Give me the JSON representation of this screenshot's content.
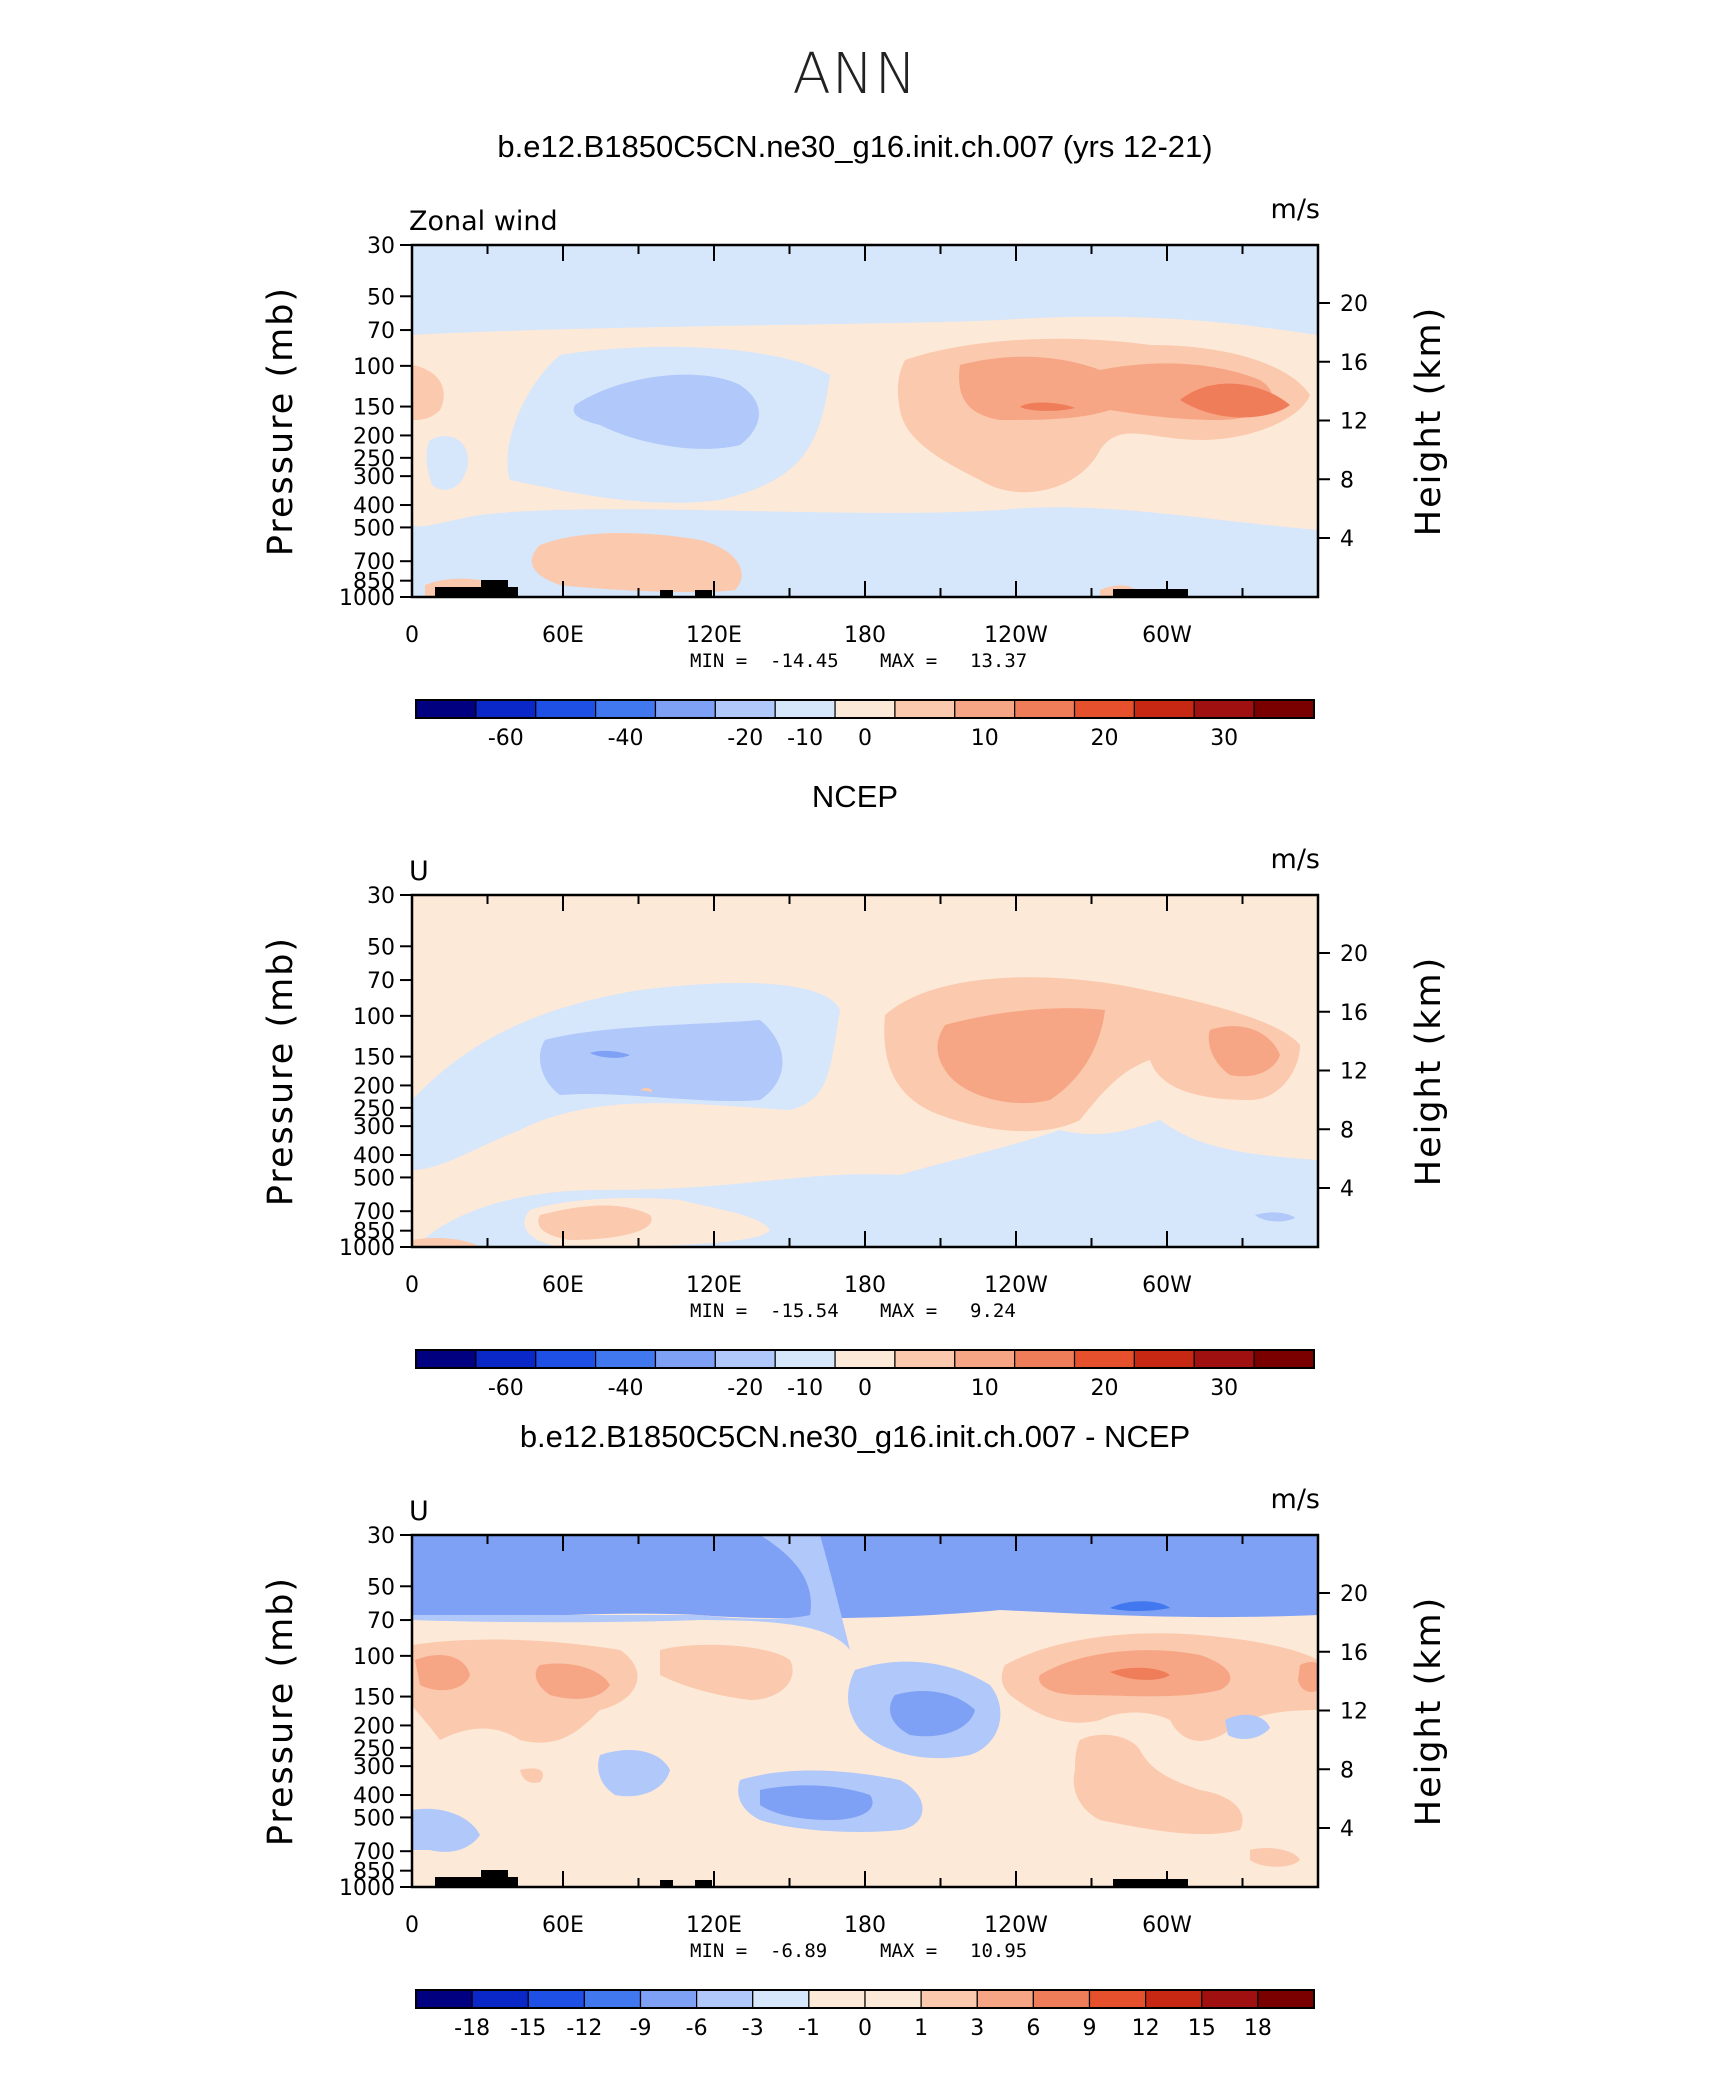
{
  "title": "ANN",
  "chart_data": [
    {
      "type": "heatmap",
      "title": "b.e12.B1850C5CN.ne30_g16.init.ch.007 (yrs 12-21)",
      "left_label": "Zonal wind",
      "units": "m/s",
      "ylabel": "Pressure (mb)",
      "y2label": "Height (km)",
      "x_ticks": [
        "0",
        "60E",
        "120E",
        "180",
        "120W",
        "60W"
      ],
      "y_ticks": [
        "30",
        "50",
        "70",
        "100",
        "150",
        "200",
        "250",
        "300",
        "400",
        "500",
        "700",
        "850",
        "1000"
      ],
      "y2_ticks": [
        "20",
        "16",
        "12",
        "8",
        "4"
      ],
      "min_label": "MIN =",
      "min": "-14.45",
      "max_label": "MAX =",
      "max": "13.37",
      "colorbar_labels": [
        "-60",
        "-40",
        "-20",
        "-10",
        "0",
        "10",
        "20",
        "30"
      ],
      "colorbar_colors": [
        "#000080",
        "#0a28c8",
        "#1e50e6",
        "#4178f0",
        "#7ea0f5",
        "#b0c8fa",
        "#d6e6fb",
        "#fde9d8",
        "#fbc9ad",
        "#f7a685",
        "#f07d5a",
        "#e6502d",
        "#c62814",
        "#a01010",
        "#7a0000"
      ]
    },
    {
      "type": "heatmap",
      "title": "NCEP",
      "left_label": "U",
      "units": "m/s",
      "ylabel": "Pressure (mb)",
      "y2label": "Height (km)",
      "x_ticks": [
        "0",
        "60E",
        "120E",
        "180",
        "120W",
        "60W"
      ],
      "y_ticks": [
        "30",
        "50",
        "70",
        "100",
        "150",
        "200",
        "250",
        "300",
        "400",
        "500",
        "700",
        "850",
        "1000"
      ],
      "y2_ticks": [
        "20",
        "16",
        "12",
        "8",
        "4"
      ],
      "min_label": "MIN =",
      "min": "-15.54",
      "max_label": "MAX =",
      "max": "9.24",
      "colorbar_labels": [
        "-60",
        "-40",
        "-20",
        "-10",
        "0",
        "10",
        "20",
        "30"
      ],
      "colorbar_colors": [
        "#000080",
        "#0a28c8",
        "#1e50e6",
        "#4178f0",
        "#7ea0f5",
        "#b0c8fa",
        "#d6e6fb",
        "#fde9d8",
        "#fbc9ad",
        "#f7a685",
        "#f07d5a",
        "#e6502d",
        "#c62814",
        "#a01010",
        "#7a0000"
      ]
    },
    {
      "type": "heatmap",
      "title": "b.e12.B1850C5CN.ne30_g16.init.ch.007 - NCEP",
      "left_label": "U",
      "units": "m/s",
      "ylabel": "Pressure (mb)",
      "y2label": "Height (km)",
      "x_ticks": [
        "0",
        "60E",
        "120E",
        "180",
        "120W",
        "60W"
      ],
      "y_ticks": [
        "30",
        "50",
        "70",
        "100",
        "150",
        "200",
        "250",
        "300",
        "400",
        "500",
        "700",
        "850",
        "1000"
      ],
      "y2_ticks": [
        "20",
        "16",
        "12",
        "8",
        "4"
      ],
      "min_label": "MIN =",
      "min": "-6.89",
      "max_label": "MAX =",
      "max": "10.95",
      "colorbar_labels": [
        "-18",
        "-15",
        "-12",
        "-9",
        "-6",
        "-3",
        "-1",
        "0",
        "1",
        "3",
        "6",
        "9",
        "12",
        "15",
        "18"
      ],
      "colorbar_colors": [
        "#000080",
        "#0a28c8",
        "#1e50e6",
        "#4178f0",
        "#7ea0f5",
        "#b0c8fa",
        "#d6e6fb",
        "#fde9d8",
        "#fde9d8",
        "#fbc9ad",
        "#f7a685",
        "#f07d5a",
        "#e6502d",
        "#c62814",
        "#a01010",
        "#7a0000"
      ]
    }
  ]
}
